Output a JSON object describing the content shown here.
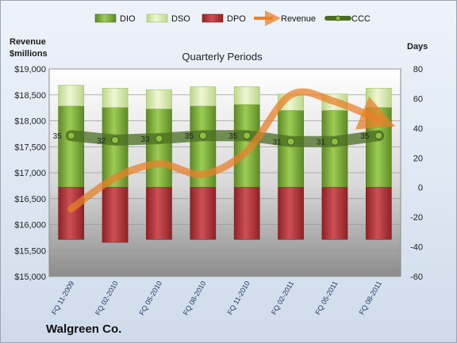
{
  "chart_data": {
    "type": "bar",
    "title": "Quarterly Periods",
    "company": "Walgreen Co.",
    "categories": [
      "FQ 11-2009",
      "FQ 02-2010",
      "FQ 05-2010",
      "FQ 08-2010",
      "FQ 11-2010",
      "FQ 02-2011",
      "FQ 05-2011",
      "FQ 08-2011"
    ],
    "left_axis": {
      "label_line1": "Revenue",
      "label_line2": "$millions",
      "min": 15000,
      "max": 19000,
      "step": 500,
      "ticks": [
        "$15,000",
        "$15,500",
        "$16,000",
        "$16,500",
        "$17,000",
        "$17,500",
        "$18,000",
        "$18,500",
        "$19,000"
      ]
    },
    "right_axis": {
      "label": "Days",
      "min": -60,
      "max": 80,
      "step": 20,
      "ticks": [
        "-60",
        "-40",
        "-20",
        "0",
        "20",
        "40",
        "60",
        "80"
      ]
    },
    "grid": true,
    "legend_position": "top",
    "series": [
      {
        "name": "DIO",
        "axis": "right",
        "kind": "stacked-positive",
        "color": "#7aa83a",
        "values": [
          55,
          54,
          53,
          55,
          56,
          52,
          52,
          54
        ]
      },
      {
        "name": "DSO",
        "axis": "right",
        "kind": "stacked-positive",
        "color": "#d6e8a8",
        "values": [
          14,
          13,
          13,
          13,
          12,
          11,
          11,
          13
        ]
      },
      {
        "name": "DPO",
        "axis": "right",
        "kind": "stacked-negative",
        "color": "#b0363a",
        "values": [
          -35,
          -37,
          -35,
          -35,
          -35,
          -35,
          -35,
          -35
        ]
      },
      {
        "name": "Revenue",
        "axis": "left",
        "kind": "line-arrow",
        "color": "#e8802a",
        "values": [
          16300,
          16900,
          17170,
          16970,
          17420,
          18500,
          18370,
          18020
        ]
      },
      {
        "name": "CCC",
        "axis": "right",
        "kind": "line-markers",
        "color": "#4a6e22",
        "values": [
          35,
          32,
          33,
          35,
          35,
          31,
          31,
          35
        ],
        "labels": [
          "35",
          "32",
          "33",
          "35",
          "35",
          "31",
          "31",
          "35"
        ]
      }
    ]
  }
}
